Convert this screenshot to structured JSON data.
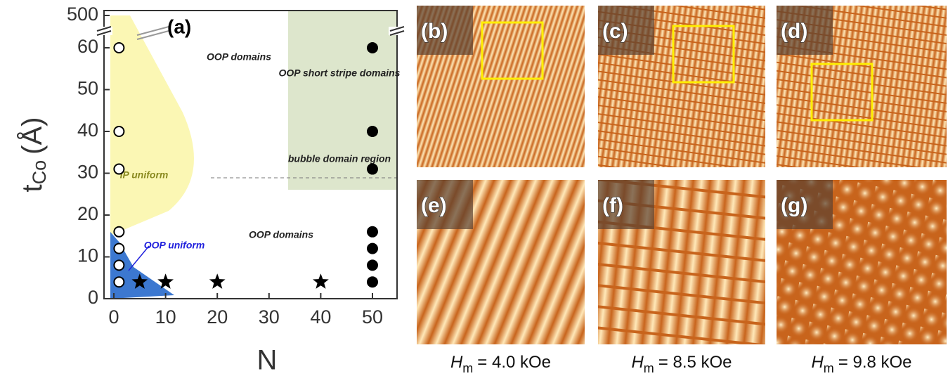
{
  "chart_data": {
    "type": "scatter",
    "panel_label": "(a)",
    "x_label": "N",
    "y_label": {
      "main": "t",
      "sub": "Co",
      "unit": "(Å)"
    },
    "xlim": [
      -2,
      55
    ],
    "ylim": [
      0,
      60
    ],
    "xticks": [
      0,
      10,
      20,
      30,
      40,
      50
    ],
    "yticks": [
      0,
      10,
      20,
      30,
      40,
      50,
      60
    ],
    "y_break_tick": 500,
    "series": [
      {
        "marker": "open-circle",
        "color": "#000000",
        "x": [
          1,
          1,
          1,
          1,
          1,
          1,
          1
        ],
        "y": [
          4,
          8,
          12,
          16,
          31,
          40,
          60
        ]
      },
      {
        "marker": "star",
        "color": "#000000",
        "x": [
          5,
          10,
          20,
          40
        ],
        "y": [
          4,
          4,
          4,
          4
        ]
      },
      {
        "marker": "circle",
        "color": "#000000",
        "x": [
          50,
          50,
          50,
          50,
          50,
          50,
          50
        ],
        "y": [
          4,
          8,
          12,
          16,
          31,
          40,
          60
        ]
      }
    ],
    "annotations": [
      "OOP domains",
      "OOP short stripe domains",
      "bubble domain region",
      "IP uniform",
      "OOP uniform",
      "OOP domains"
    ]
  },
  "panels": [
    "(b)",
    "(c)",
    "(d)",
    "(e)",
    "(f)",
    "(g)"
  ],
  "captions": [
    {
      "symbol": "H",
      "sub": "m",
      "text": "= 4.0 kOe"
    },
    {
      "symbol": "H",
      "sub": "m",
      "text": "= 8.5 kOe"
    },
    {
      "symbol": "H",
      "sub": "m",
      "text": "= 9.8 kOe"
    }
  ]
}
